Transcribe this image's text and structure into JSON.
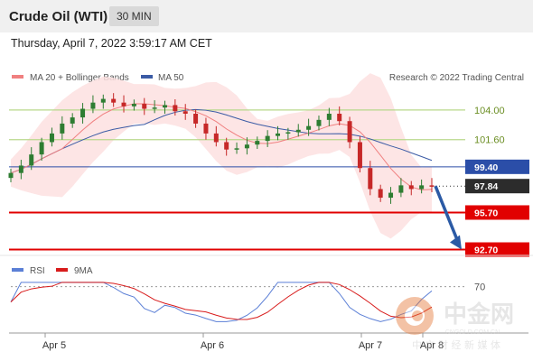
{
  "header": {
    "title": "Crude Oil (WTI)",
    "timeframe": "30 MIN",
    "datetime": "Thursday, April 7, 2022 3:59:17 AM CET"
  },
  "legend": {
    "ma20_label": "MA 20 + Bollinger Bands",
    "ma50_label": "MA 50",
    "credit": "Research © 2022 Trading Central",
    "rsi_label": "RSI",
    "rsi_ma_label": "9MA"
  },
  "colors": {
    "candle_up": "#2e7d32",
    "candle_down": "#c62828",
    "ma20": "#f08080",
    "ma50": "#3b5ba5",
    "bollinger_fill": "#fde0e0",
    "support": "#e10000",
    "resistance": "#b8d88b",
    "pivot": "#2b4ea8",
    "rsi": "#5b7fd6",
    "rsi_ma": "#d81b1b",
    "arrow": "#2b5aa5"
  },
  "chart_data": {
    "type": "candlestick",
    "x_labels": [
      "Apr 5",
      "Apr 6",
      "Apr 7",
      "Apr 8"
    ],
    "ylim": [
      92.3,
      105.6
    ],
    "levels": [
      {
        "name": "resistance_2",
        "value": 104.0,
        "label": "104.00",
        "style": "text-green"
      },
      {
        "name": "resistance_1",
        "value": 101.6,
        "label": "101.60",
        "style": "text-green"
      },
      {
        "name": "pivot",
        "value": 99.4,
        "label": "99.40",
        "style": "box-blue"
      },
      {
        "name": "last_price",
        "value": 97.84,
        "label": "97.84",
        "style": "box-dark"
      },
      {
        "name": "support_1",
        "value": 95.7,
        "label": "95.70",
        "style": "box-red"
      },
      {
        "name": "support_2",
        "value": 92.7,
        "label": "92.70",
        "style": "box-red"
      }
    ],
    "closes": [
      98.9,
      99.5,
      100.4,
      101.4,
      102.1,
      102.9,
      103.4,
      104.1,
      104.6,
      104.9,
      104.6,
      104.3,
      104.5,
      104.1,
      104.2,
      104.4,
      103.9,
      103.7,
      102.9,
      102.1,
      101.4,
      100.8,
      100.9,
      101.2,
      101.5,
      101.9,
      102.1,
      102.2,
      102.4,
      102.7,
      103.2,
      103.7,
      103.1,
      101.4,
      99.3,
      97.6,
      96.9,
      97.3,
      97.9,
      97.6,
      97.9,
      97.84
    ],
    "forecast_target": 92.7,
    "rsi_level": 70,
    "rsi_ylim": [
      20,
      80
    ]
  }
}
